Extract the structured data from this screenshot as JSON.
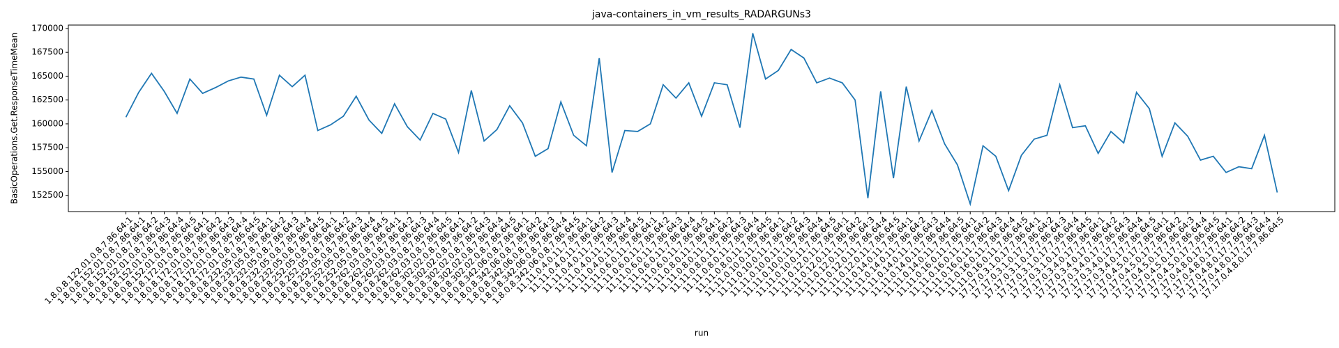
{
  "chart_data": {
    "type": "line",
    "title": "java-containers_in_vm_results_RADARGUNs3",
    "x_label": "run",
    "y_label": "BasicOperations.Get.ResponseTimeMean",
    "categories": [
      "1.8.0.8.122.01.0.8.7.86.64:1",
      "1.8.0.8.152.01.0.8.7.86.64:1",
      "1.8.0.8.152.01.0.8.7.86.64:2",
      "1.8.0.8.152.01.0.8.7.86.64:3",
      "1.8.0.8.152.01.0.8.7.86.64:4",
      "1.8.0.8.152.01.0.8.7.86.64:5",
      "1.8.0.8.172.01.0.8.7.86.64:1",
      "1.8.0.8.172.01.0.8.7.86.64:2",
      "1.8.0.8.172.01.0.8.7.86.64:3",
      "1.8.0.8.172.01.0.8.7.86.64:4",
      "1.8.0.8.172.01.0.8.7.86.64:5",
      "1.8.0.8.232.05.0.8.7.86.64:1",
      "1.8.0.8.232.05.0.8.7.86.64:2",
      "1.8.0.8.232.05.0.8.7.86.64:3",
      "1.8.0.8.232.05.0.8.7.86.64:4",
      "1.8.0.8.232.05.0.8.7.86.64:5",
      "1.8.0.8.252.05.0.8.7.86.64:1",
      "1.8.0.8.252.05.0.8.7.86.64:2",
      "1.8.0.8.252.05.0.8.7.86.64:3",
      "1.8.0.8.252.05.0.8.7.86.64:4",
      "1.8.0.8.252.05.0.8.7.86.64:5",
      "1.8.0.8.262.03.0.8.7.86.64:1",
      "1.8.0.8.262.03.0.8.7.86.64:2",
      "1.8.0.8.262.03.0.8.7.86.64:3",
      "1.8.0.8.262.03.0.8.7.86.64:4",
      "1.8.0.8.262.03.0.8.7.86.64:5",
      "1.8.0.8.302.02.0.8.7.86.64:1",
      "1.8.0.8.302.02.0.8.7.86.64:2",
      "1.8.0.8.302.02.0.8.7.86.64:3",
      "1.8.0.8.302.02.0.8.7.86.64:4",
      "1.8.0.8.302.02.0.8.7.86.64:5",
      "1.8.0.8.342.06.0.8.7.86.64:1",
      "1.8.0.8.342.06.0.8.7.86.64:2",
      "1.8.0.8.342.06.0.8.7.86.64:3",
      "1.8.0.8.342.06.0.8.7.86.64:4",
      "1.8.0.8.342.06.0.8.7.86.64:5",
      "11.11.0.4.0.11.7.86.64:1",
      "11.11.0.4.0.11.7.86.64:2",
      "11.11.0.4.0.11.7.86.64:3",
      "11.11.0.4.0.11.7.86.64:4",
      "11.11.0.4.0.11.7.86.64:5",
      "11.11.0.6.0.11.7.86.64:1",
      "11.11.0.6.0.11.7.86.64:2",
      "11.11.0.6.0.11.7.86.64:3",
      "11.11.0.6.0.11.7.86.64:4",
      "11.11.0.6.0.11.7.86.64:5",
      "11.11.0.8.0.11.7.86.64:1",
      "11.11.0.8.0.11.7.86.64:2",
      "11.11.0.8.0.11.7.86.64:3",
      "11.11.0.8.0.11.7.86.64:4",
      "11.11.0.8.0.11.7.86.64:5",
      "11.11.0.10.0.11.7.86.64:1",
      "11.11.0.10.0.11.7.86.64:2",
      "11.11.0.10.0.11.7.86.64:3",
      "11.11.0.10.0.11.7.86.64:4",
      "11.11.0.10.0.11.7.86.64:5",
      "11.11.0.12.0.11.7.86.64:1",
      "11.11.0.12.0.11.7.86.64:2",
      "11.11.0.12.0.11.7.86.64:3",
      "11.11.0.12.0.11.7.86.64:4",
      "11.11.0.12.0.11.7.86.64:5",
      "11.11.0.14.0.11.7.86.64:1",
      "11.11.0.14.0.11.7.86.64:2",
      "11.11.0.14.0.11.7.86.64:3",
      "11.11.0.14.0.11.7.86.64:4",
      "11.11.0.14.0.11.7.86.64:5",
      "11.11.0.16.0.11.7.86.64:1",
      "11.11.0.16.0.11.7.86.64:2",
      "11.11.0.16.0.11.7.86.64:3",
      "11.11.0.16.0.11.7.86.64:4",
      "11.11.0.16.0.11.7.86.64:5",
      "17.17.0.3.1.0.17.7.86.64:1",
      "17.17.0.3.1.0.17.7.86.64:2",
      "17.17.0.3.1.0.17.7.86.64:3",
      "17.17.0.3.1.0.17.7.86.64:4",
      "17.17.0.3.1.0.17.7.86.64:5",
      "17.17.0.3.4.0.17.7.86.64:1",
      "17.17.0.3.4.0.17.7.86.64:2",
      "17.17.0.3.4.0.17.7.86.64:3",
      "17.17.0.3.4.0.17.7.86.64:4",
      "17.17.0.3.4.0.17.7.86.64:5",
      "17.17.0.4.5.0.17.7.86.64:1",
      "17.17.0.4.5.0.17.7.86.64:2",
      "17.17.0.4.5.0.17.7.86.64:3",
      "17.17.0.4.5.0.17.7.86.64:4",
      "17.17.0.4.5.0.17.7.86.64:5",
      "17.17.0.4.8.0.17.7.86.64:1",
      "17.17.0.4.8.0.17.7.86.64:2",
      "17.17.0.4.8.0.17.7.86.64:3",
      "17.17.0.4.8.0.17.7.86.64:4",
      "17.17.0.4.8.0.17.7.86.64:5"
    ],
    "values": [
      160700,
      163300,
      165300,
      163400,
      161100,
      164700,
      163200,
      163800,
      164500,
      164900,
      164700,
      160900,
      165100,
      163900,
      165100,
      159300,
      159900,
      160800,
      162900,
      160400,
      159000,
      162100,
      159700,
      158300,
      161100,
      160500,
      157000,
      163500,
      158200,
      159400,
      161900,
      160100,
      156600,
      157400,
      162300,
      158800,
      157700,
      166900,
      154900,
      159300,
      159200,
      160000,
      164100,
      162700,
      164300,
      160800,
      164300,
      164100,
      159600,
      169500,
      164700,
      165600,
      167800,
      166900,
      164300,
      164800,
      164300,
      162500,
      152200,
      163400,
      154300,
      163900,
      158200,
      161400,
      157900,
      155700,
      151600,
      157700,
      156600,
      153000,
      156700,
      158400,
      158800,
      164100,
      159600,
      159800,
      156900,
      159200,
      158000,
      163300,
      161600,
      156600,
      160100,
      158700,
      156200,
      156600,
      154900,
      155500,
      155300,
      158800,
      152800
    ],
    "color": "#1f77b4",
    "ylim": [
      150800,
      170360
    ],
    "yticks": [
      152500,
      155000,
      157500,
      160000,
      162500,
      165000,
      167500,
      170000
    ]
  }
}
